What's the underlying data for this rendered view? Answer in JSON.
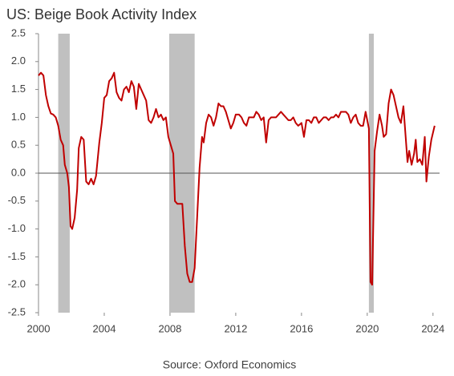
{
  "chart_data": {
    "type": "line",
    "title": "US: Beige Book Activity Index",
    "source": "Source: Oxford Economics",
    "xlim": [
      2000,
      2024.4
    ],
    "xticks": [
      2000,
      2004,
      2008,
      2012,
      2016,
      2020,
      2024
    ],
    "ylim": [
      -2.5,
      2.5
    ],
    "yticks": [
      2.5,
      {
        "value": 2,
        "label": "2.0"
      },
      1.5,
      {
        "value": 1,
        "label": "1.0"
      },
      0.5,
      {
        "value": 0,
        "label": "0.0"
      },
      -0.5,
      {
        "value": -1,
        "label": "-1.0"
      },
      -1.5,
      {
        "value": -2,
        "label": "-2.0"
      },
      -2.5
    ],
    "shaded_periods": [
      [
        2001.2,
        2001.9
      ],
      [
        2007.95,
        2009.5
      ],
      [
        2020.1,
        2020.4
      ]
    ],
    "shade_color": "#c0c0c0",
    "x": [
      2000.0,
      2000.15,
      2000.3,
      2000.45,
      2000.6,
      2000.75,
      2000.9,
      2001.05,
      2001.2,
      2001.35,
      2001.5,
      2001.6,
      2001.75,
      2001.85,
      2001.95,
      2002.05,
      2002.2,
      2002.35,
      2002.45,
      2002.6,
      2002.75,
      2002.9,
      2003.05,
      2003.2,
      2003.35,
      2003.5,
      2003.7,
      2003.85,
      2004.0,
      2004.15,
      2004.3,
      2004.45,
      2004.6,
      2004.75,
      2004.9,
      2005.05,
      2005.2,
      2005.35,
      2005.5,
      2005.65,
      2005.8,
      2005.95,
      2006.1,
      2006.25,
      2006.4,
      2006.55,
      2006.7,
      2006.85,
      2007.0,
      2007.15,
      2007.3,
      2007.45,
      2007.6,
      2007.75,
      2007.9,
      2008.05,
      2008.2,
      2008.3,
      2008.45,
      2008.6,
      2008.75,
      2008.9,
      2009.05,
      2009.2,
      2009.35,
      2009.5,
      2009.65,
      2009.8,
      2009.95,
      2010.05,
      2010.2,
      2010.35,
      2010.5,
      2010.65,
      2010.8,
      2010.95,
      2011.1,
      2011.25,
      2011.4,
      2011.55,
      2011.7,
      2011.85,
      2012.0,
      2012.2,
      2012.35,
      2012.5,
      2012.65,
      2012.8,
      2012.95,
      2013.1,
      2013.25,
      2013.4,
      2013.55,
      2013.7,
      2013.85,
      2014.0,
      2014.15,
      2014.3,
      2014.45,
      2014.6,
      2014.75,
      2014.9,
      2015.05,
      2015.2,
      2015.35,
      2015.5,
      2015.65,
      2015.8,
      2016.0,
      2016.15,
      2016.3,
      2016.45,
      2016.6,
      2016.75,
      2016.9,
      2017.05,
      2017.2,
      2017.35,
      2017.5,
      2017.65,
      2017.8,
      2017.95,
      2018.1,
      2018.25,
      2018.4,
      2018.55,
      2018.7,
      2018.85,
      2019.0,
      2019.15,
      2019.3,
      2019.45,
      2019.6,
      2019.75,
      2019.9,
      2020.0,
      2020.1,
      2020.2,
      2020.3,
      2020.45,
      2020.6,
      2020.75,
      2020.9,
      2021.0,
      2021.15,
      2021.3,
      2021.45,
      2021.6,
      2021.75,
      2021.9,
      2022.05,
      2022.2,
      2022.35,
      2022.45,
      2022.55,
      2022.7,
      2022.85,
      2022.95,
      2023.05,
      2023.2,
      2023.35,
      2023.5,
      2023.6,
      2023.75,
      2023.9,
      2024.1
    ],
    "series": [
      {
        "color": "#c00000",
        "values": [
          1.75,
          1.8,
          1.75,
          1.4,
          1.2,
          1.07,
          1.05,
          1.0,
          0.85,
          0.6,
          0.5,
          0.15,
          0.0,
          -0.25,
          -0.95,
          -1.0,
          -0.8,
          -0.3,
          0.45,
          0.65,
          0.6,
          -0.15,
          -0.2,
          -0.1,
          -0.2,
          -0.05,
          0.55,
          0.9,
          1.35,
          1.4,
          1.65,
          1.7,
          1.8,
          1.45,
          1.35,
          1.3,
          1.5,
          1.55,
          1.45,
          1.65,
          1.55,
          1.15,
          1.6,
          1.5,
          1.4,
          1.3,
          0.95,
          0.9,
          1.0,
          1.15,
          1.0,
          1.05,
          0.95,
          1.0,
          0.65,
          0.5,
          0.35,
          -0.5,
          -0.55,
          -0.55,
          -0.55,
          -1.3,
          -1.8,
          -1.95,
          -1.95,
          -1.7,
          -0.8,
          0.1,
          0.65,
          0.55,
          0.9,
          1.05,
          1.0,
          0.85,
          1.0,
          1.25,
          1.2,
          1.2,
          1.1,
          0.95,
          0.8,
          0.9,
          1.05,
          1.05,
          1.0,
          0.9,
          0.85,
          1.0,
          1.0,
          1.0,
          1.1,
          1.05,
          0.95,
          1.0,
          0.55,
          0.95,
          1.0,
          1.0,
          1.0,
          1.05,
          1.1,
          1.05,
          1.0,
          0.95,
          0.95,
          1.0,
          0.9,
          0.85,
          0.9,
          0.65,
          0.95,
          0.95,
          0.9,
          1.0,
          1.0,
          0.9,
          0.95,
          1.0,
          1.0,
          0.95,
          1.0,
          1.0,
          1.05,
          1.0,
          1.1,
          1.1,
          1.1,
          1.05,
          0.9,
          1.0,
          1.05,
          0.9,
          0.85,
          0.85,
          1.1,
          0.95,
          0.8,
          -1.95,
          -2.0,
          0.4,
          0.75,
          1.05,
          0.85,
          0.65,
          0.7,
          1.25,
          1.5,
          1.4,
          1.2,
          1.0,
          0.9,
          1.2,
          0.6,
          0.2,
          0.4,
          0.15,
          0.35,
          0.6,
          0.2,
          0.25,
          0.15,
          0.65,
          -0.15,
          0.3,
          0.6,
          0.85
        ]
      }
    ]
  }
}
